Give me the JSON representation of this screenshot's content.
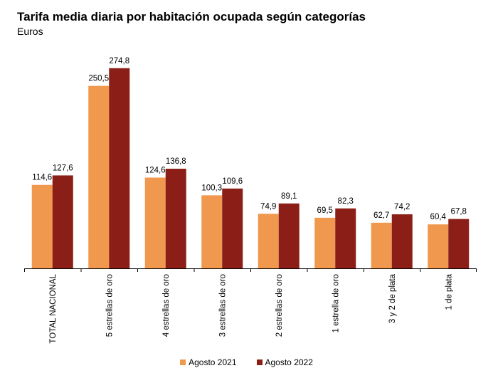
{
  "title": "Tarifa media diaria por habitación ocupada según categorías",
  "subtitle": "Euros",
  "colors": {
    "agosto_2021": "#F0984E",
    "agosto_2022": "#8B1F17"
  },
  "legend": [
    "Agosto 2021",
    "Agosto 2022"
  ],
  "chart_data": {
    "type": "bar",
    "title": "Tarifa media diaria por habitación ocupada según categorías",
    "subtitle": "Euros",
    "xlabel": "",
    "ylabel": "",
    "ylim": [
      0,
      300
    ],
    "grid": false,
    "legend_position": "bottom",
    "categories": [
      "TOTAL NACIONAL",
      "5 estrellas de oro",
      "4 estrellas de oro",
      "3 estrellas de oro",
      "2 estrellas de oro",
      "1 estrella de oro",
      "3 y 2 de plata",
      "1 de plata"
    ],
    "series": [
      {
        "name": "Agosto 2021",
        "values": [
          114.6,
          250.5,
          124.6,
          100.3,
          74.9,
          69.5,
          62.7,
          60.4
        ],
        "labels": [
          "114,6",
          "250,5",
          "124,6",
          "100,3",
          "74,9",
          "69,5",
          "62,7",
          "60,4"
        ]
      },
      {
        "name": "Agosto 2022",
        "values": [
          127.6,
          274.8,
          136.8,
          109.6,
          89.1,
          82.3,
          74.2,
          67.8
        ],
        "labels": [
          "127,6",
          "274,8",
          "136,8",
          "109,6",
          "89,1",
          "82,3",
          "74,2",
          "67,8"
        ]
      }
    ]
  }
}
